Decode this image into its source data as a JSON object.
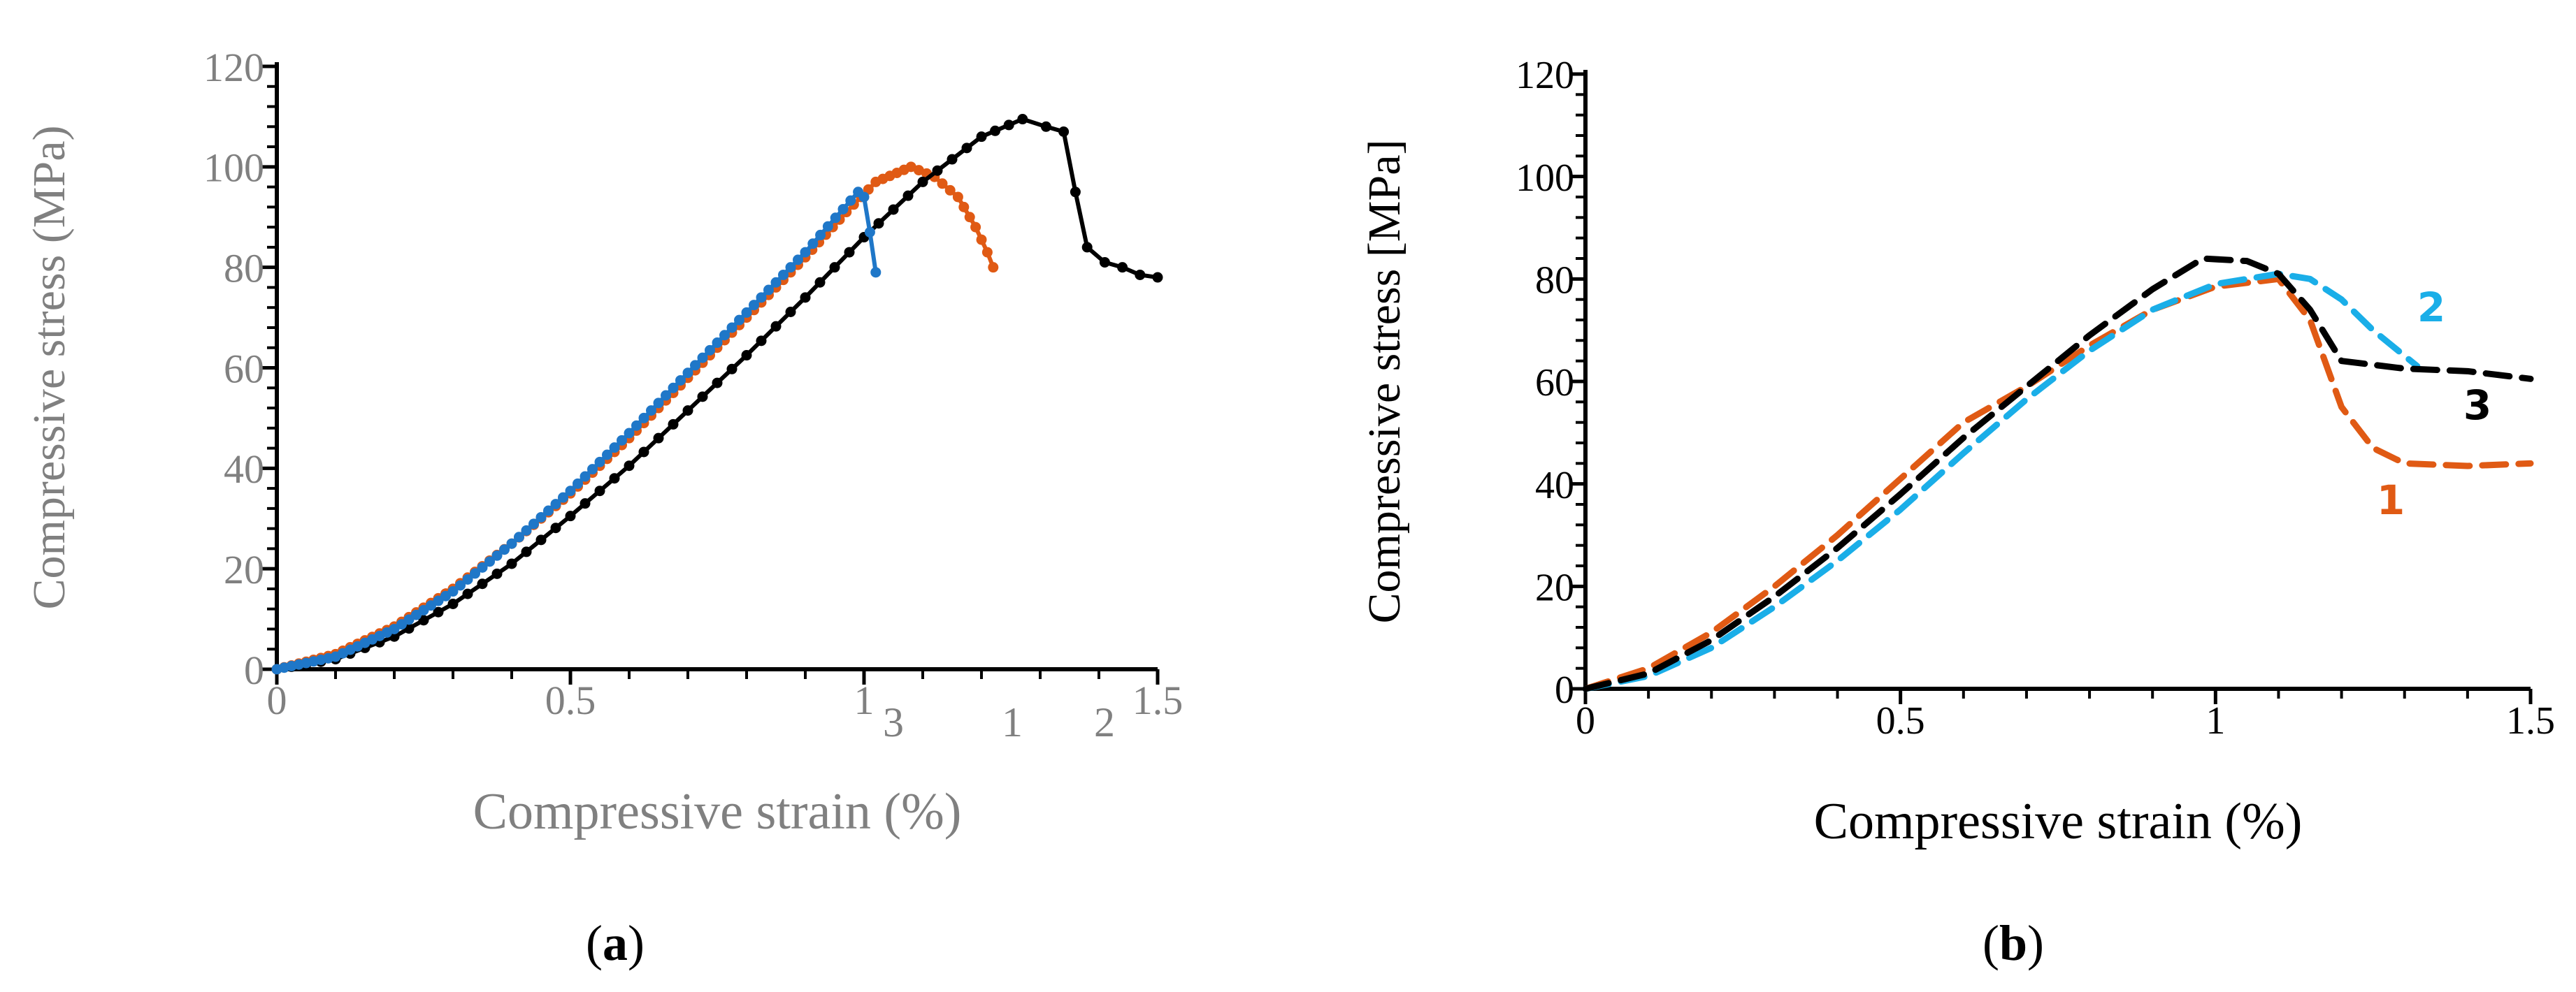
{
  "colors": {
    "orange": "#E05A14",
    "blue": "#1F77C8",
    "black": "#000000",
    "cyan": "#1AAEE8",
    "grey": "#808080"
  },
  "chart_data": [
    {
      "panel": "a",
      "caption": "(a)",
      "type": "line",
      "xlabel": "Compressive strain (%)",
      "ylabel": "Compressive stress (MPa)",
      "xlim": [
        0,
        1.5
      ],
      "ylim": [
        0,
        120
      ],
      "xticks": [
        "0",
        "0.5",
        "1",
        "1.5"
      ],
      "yticks": [
        "0",
        "20",
        "40",
        "60",
        "80",
        "100",
        "120"
      ],
      "series": [
        {
          "name": "1",
          "label": "1",
          "color": "orange",
          "markers": true,
          "dense": true,
          "x": [
            0,
            0.1,
            0.2,
            0.3,
            0.4,
            0.5,
            0.6,
            0.7,
            0.8,
            0.9,
            0.97,
            1.02,
            1.08,
            1.12,
            1.16,
            1.19,
            1.21,
            1.22
          ],
          "y": [
            0,
            3,
            8.5,
            16,
            25,
            35,
            46,
            58,
            70,
            82,
            91,
            97,
            100,
            98,
            94,
            88,
            83,
            80
          ]
        },
        {
          "name": "2",
          "label": "2",
          "color": "black",
          "markers": true,
          "dense": false,
          "x": [
            0,
            0.1,
            0.2,
            0.3,
            0.4,
            0.5,
            0.6,
            0.7,
            0.8,
            0.9,
            1.0,
            1.1,
            1.2,
            1.27,
            1.31,
            1.34,
            1.36,
            1.38,
            1.41,
            1.44,
            1.47,
            1.5
          ],
          "y": [
            0,
            2,
            6.5,
            13,
            21,
            30.5,
            40.5,
            51.5,
            62.5,
            74,
            86,
            97,
            106,
            109.5,
            108,
            107,
            95,
            84,
            81,
            80,
            78.5,
            78
          ]
        },
        {
          "name": "3",
          "label": "3",
          "color": "blue",
          "markers": true,
          "dense": true,
          "x": [
            0,
            0.1,
            0.2,
            0.3,
            0.4,
            0.5,
            0.6,
            0.7,
            0.8,
            0.9,
            0.99,
            1.0,
            1.01,
            1.02
          ],
          "y": [
            0,
            2.5,
            8,
            15.5,
            25,
            35.5,
            47,
            59,
            71,
            83,
            95,
            94,
            87,
            79
          ]
        }
      ]
    },
    {
      "panel": "b",
      "caption": "(b)",
      "type": "line",
      "xlabel": "Compressive strain (%)",
      "ylabel": "Compressive stress [MPa]",
      "xlim": [
        0,
        1.5
      ],
      "ylim": [
        0,
        120
      ],
      "xticks": [
        "0",
        "0.5",
        "1",
        "1.5"
      ],
      "yticks": [
        "0",
        "20",
        "40",
        "60",
        "80",
        "100",
        "120"
      ],
      "series": [
        {
          "name": "1",
          "label": "1",
          "color": "orange",
          "dashed": true,
          "x": [
            0,
            0.1,
            0.2,
            0.3,
            0.4,
            0.5,
            0.6,
            0.7,
            0.8,
            0.9,
            1.0,
            1.1,
            1.15,
            1.2,
            1.25,
            1.3,
            1.4,
            1.5
          ],
          "y": [
            0,
            4,
            11,
            20,
            30,
            41,
            52,
            59,
            67,
            74,
            78.5,
            80,
            72,
            55,
            47,
            44,
            43.5,
            44
          ]
        },
        {
          "name": "2",
          "label": "2",
          "color": "cyan",
          "dashed": true,
          "x": [
            0,
            0.1,
            0.2,
            0.3,
            0.4,
            0.5,
            0.6,
            0.7,
            0.8,
            0.9,
            1.0,
            1.1,
            1.15,
            1.2,
            1.25,
            1.32
          ],
          "y": [
            0,
            2.5,
            8,
            16,
            25,
            35,
            46,
            56.5,
            66,
            74,
            79,
            81,
            80,
            76,
            70,
            63
          ]
        },
        {
          "name": "3",
          "label": "3",
          "color": "black",
          "dashed": true,
          "x": [
            0,
            0.1,
            0.2,
            0.3,
            0.4,
            0.5,
            0.6,
            0.7,
            0.8,
            0.9,
            0.98,
            1.05,
            1.1,
            1.15,
            1.2,
            1.3,
            1.4,
            1.5
          ],
          "y": [
            0,
            3,
            9.5,
            18,
            27.5,
            38,
            49,
            59,
            69,
            78,
            84,
            83.5,
            81,
            74,
            64,
            62.5,
            62,
            60.5
          ]
        }
      ]
    }
  ]
}
